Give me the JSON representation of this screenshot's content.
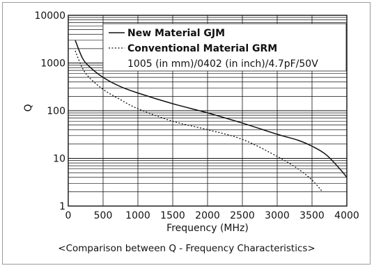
{
  "chart_data": {
    "type": "line",
    "y_scale": "log",
    "xlabel": "Frequency (MHz)",
    "ylabel": "Q",
    "xlim": [
      0,
      4000
    ],
    "ylim": [
      1,
      10000
    ],
    "x_ticks": [
      "0",
      "500",
      "1000",
      "1500",
      "2000",
      "2500",
      "3000",
      "3500",
      "4000"
    ],
    "y_ticks": [
      "1",
      "10",
      "100",
      "1000",
      "10000"
    ],
    "grid": true,
    "legend_position": "top-right",
    "legend_note": "1005 (in mm)/0402 (in inch)/4.7pF/50V",
    "caption": "<Comparison between Q - Frequency Characteristics>",
    "series": [
      {
        "name": "New Material GJM",
        "style": "solid",
        "x": [
          100,
          200,
          300,
          500,
          750,
          1000,
          1500,
          2000,
          2500,
          3000,
          3300,
          3500,
          3700,
          3900,
          4000
        ],
        "y": [
          3000,
          1300,
          850,
          500,
          320,
          235,
          140,
          90,
          55,
          32,
          24,
          18,
          12,
          6,
          4
        ]
      },
      {
        "name": "Conventional Material GRM",
        "style": "dotted",
        "x": [
          100,
          200,
          300,
          500,
          750,
          1000,
          1500,
          2000,
          2500,
          3000,
          3300,
          3500,
          3650
        ],
        "y": [
          1800,
          800,
          500,
          280,
          170,
          110,
          60,
          40,
          25,
          11,
          6,
          3.5,
          2
        ]
      }
    ]
  }
}
